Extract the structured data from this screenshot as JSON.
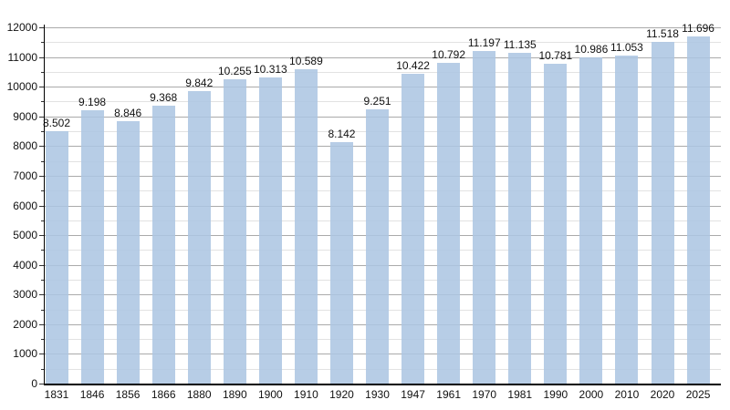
{
  "chart_data": {
    "type": "bar",
    "title": "",
    "xlabel": "",
    "ylabel": "",
    "categories": [
      "1831",
      "1846",
      "1856",
      "1866",
      "1880",
      "1890",
      "1900",
      "1910",
      "1920",
      "1930",
      "1947",
      "1961",
      "1970",
      "1981",
      "1990",
      "2000",
      "2010",
      "2020",
      "2025"
    ],
    "values": [
      8502,
      9198,
      8846,
      9368,
      9842,
      10255,
      10313,
      10589,
      8142,
      9251,
      10422,
      10792,
      11197,
      11135,
      10781,
      10986,
      11053,
      11518,
      11696
    ],
    "value_labels": [
      "8.502",
      "9.198",
      "8.846",
      "9.368",
      "9.842",
      "10.255",
      "10.313",
      "10.589",
      "8.142",
      "9.251",
      "10.422",
      "10.792",
      "11.197",
      "11.135",
      "10.781",
      "10.986",
      "11.053",
      "11.518",
      "11.696"
    ],
    "ylim": [
      0,
      12000
    ],
    "y_major_step": 1000,
    "y_minor_step": 500,
    "y_tick_labels": [
      "0",
      "1000",
      "2000",
      "3000",
      "4000",
      "5000",
      "6000",
      "7000",
      "8000",
      "9000",
      "10000",
      "11000",
      "12000"
    ],
    "grid": "on",
    "legend": "none",
    "colors": {
      "bar_fill": "rgba(172,198,226,0.87)",
      "grid_major": "#aaaaaa",
      "grid_minor": "#e2e2e2",
      "axis": "#000000",
      "tick": "#333333",
      "text": "#111111",
      "background": "#ffffff"
    }
  }
}
